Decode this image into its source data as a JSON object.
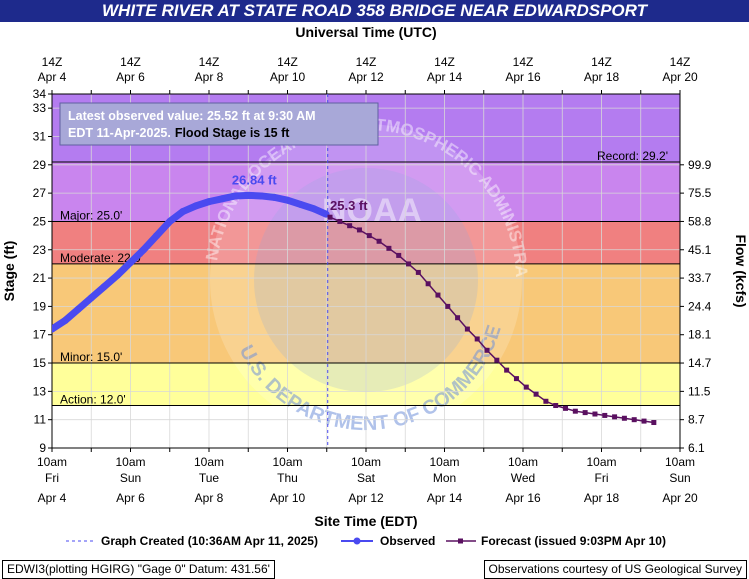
{
  "chart_data": {
    "type": "line",
    "title": "WHITE RIVER AT STATE ROAD 358 BRIDGE NEAR EDWARDSPORT",
    "top_axis_title": "Universal Time (UTC)",
    "bottom_axis_title": "Site Time (EDT)",
    "ylabel": "Stage (ft)",
    "y2label": "Flow (kcfs)",
    "xlim": [
      "2025-04-04T10:00",
      "2025-04-20T10:00"
    ],
    "ylim": [
      9,
      34
    ],
    "grid": true,
    "y_ticks": [
      9,
      11,
      13,
      15,
      17,
      19,
      21,
      23,
      25,
      27,
      29,
      31,
      33,
      34
    ],
    "x_ticks": [
      {
        "time": "2025-04-04T10:00",
        "top": [
          "14Z",
          "Apr  4"
        ],
        "bottom": [
          "10am",
          "Fri",
          "Apr 4"
        ]
      },
      {
        "time": "2025-04-05T10:00",
        "top": [],
        "bottom": []
      },
      {
        "time": "2025-04-06T10:00",
        "top": [
          "14Z",
          "Apr  6"
        ],
        "bottom": [
          "10am",
          "Sun",
          "Apr 6"
        ]
      },
      {
        "time": "2025-04-07T10:00",
        "top": [],
        "bottom": []
      },
      {
        "time": "2025-04-08T10:00",
        "top": [
          "14Z",
          "Apr  8"
        ],
        "bottom": [
          "10am",
          "Tue",
          "Apr 8"
        ]
      },
      {
        "time": "2025-04-09T10:00",
        "top": [],
        "bottom": []
      },
      {
        "time": "2025-04-10T10:00",
        "top": [
          "14Z",
          "Apr 10"
        ],
        "bottom": [
          "10am",
          "Thu",
          "Apr 10"
        ]
      },
      {
        "time": "2025-04-11T10:00",
        "top": [],
        "bottom": []
      },
      {
        "time": "2025-04-12T10:00",
        "top": [
          "14Z",
          "Apr 12"
        ],
        "bottom": [
          "10am",
          "Sat",
          "Apr 12"
        ]
      },
      {
        "time": "2025-04-13T10:00",
        "top": [],
        "bottom": []
      },
      {
        "time": "2025-04-14T10:00",
        "top": [
          "14Z",
          "Apr 14"
        ],
        "bottom": [
          "10am",
          "Mon",
          "Apr 14"
        ]
      },
      {
        "time": "2025-04-15T10:00",
        "top": [],
        "bottom": []
      },
      {
        "time": "2025-04-16T10:00",
        "top": [
          "14Z",
          "Apr 16"
        ],
        "bottom": [
          "10am",
          "Wed",
          "Apr 16"
        ]
      },
      {
        "time": "2025-04-17T10:00",
        "top": [],
        "bottom": []
      },
      {
        "time": "2025-04-18T10:00",
        "top": [
          "14Z",
          "Apr 18"
        ],
        "bottom": [
          "10am",
          "Fri",
          "Apr 18"
        ]
      },
      {
        "time": "2025-04-19T10:00",
        "top": [],
        "bottom": []
      },
      {
        "time": "2025-04-20T10:00",
        "top": [
          "14Z",
          "Apr 20"
        ],
        "bottom": [
          "10am",
          "Sun",
          "Apr 20"
        ]
      }
    ],
    "flow_ticks": [
      {
        "stage": 29,
        "label": "99.9"
      },
      {
        "stage": 27,
        "label": "75.5"
      },
      {
        "stage": 25,
        "label": "58.8"
      },
      {
        "stage": 23,
        "label": "45.1"
      },
      {
        "stage": 21,
        "label": "33.7"
      },
      {
        "stage": 19,
        "label": "24.4"
      },
      {
        "stage": 17,
        "label": "18.1"
      },
      {
        "stage": 15,
        "label": "14.7"
      },
      {
        "stage": 13,
        "label": "11.5"
      },
      {
        "stage": 11,
        "label": "8.7"
      },
      {
        "stage": 9,
        "label": "6.1"
      }
    ],
    "bands": [
      {
        "from": 29.2,
        "to": 34,
        "color": "#b47cf0"
      },
      {
        "from": 25,
        "to": 29.2,
        "color": "#c985ee"
      },
      {
        "from": 22,
        "to": 25,
        "color": "#f08080"
      },
      {
        "from": 15,
        "to": 22,
        "color": "#f8c878"
      },
      {
        "from": 12,
        "to": 15,
        "color": "#ffff9a"
      },
      {
        "from": 9,
        "to": 12,
        "color": "#ffffff"
      }
    ],
    "thresholds": [
      {
        "label": "Record: 29.2'",
        "stage": 29.2,
        "side": "right"
      },
      {
        "label": "Major: 25.0'",
        "stage": 25.0,
        "side": "left"
      },
      {
        "label": "Moderate: 22.0'",
        "stage": 22.0,
        "side": "left"
      },
      {
        "label": "Minor: 15.0'",
        "stage": 15.0,
        "side": "left"
      },
      {
        "label": "Action: 12.0'",
        "stage": 12.0,
        "side": "left"
      }
    ],
    "annotations": [
      {
        "text": "26.84 ft",
        "time": "2025-04-09T00:00",
        "stage": 27.6,
        "color": "#4a4af0"
      },
      {
        "text": "25.3 ft",
        "time": "2025-04-11T12:00",
        "stage": 25.8,
        "color": "#5a1060"
      }
    ],
    "now_time": "2025-04-11T10:36",
    "series": [
      {
        "name": "Observed",
        "color": "#4a4af0",
        "points": [
          [
            "2025-04-04T10:00",
            17.4
          ],
          [
            "2025-04-04T18:00",
            18.0
          ],
          [
            "2025-04-05T02:00",
            18.8
          ],
          [
            "2025-04-05T10:00",
            19.6
          ],
          [
            "2025-04-05T18:00",
            20.4
          ],
          [
            "2025-04-06T02:00",
            21.2
          ],
          [
            "2025-04-06T10:00",
            22.1
          ],
          [
            "2025-04-06T18:00",
            23.0
          ],
          [
            "2025-04-07T02:00",
            24.0
          ],
          [
            "2025-04-07T10:00",
            25.0
          ],
          [
            "2025-04-07T18:00",
            25.7
          ],
          [
            "2025-04-08T02:00",
            26.1
          ],
          [
            "2025-04-08T10:00",
            26.4
          ],
          [
            "2025-04-08T18:00",
            26.6
          ],
          [
            "2025-04-09T02:00",
            26.8
          ],
          [
            "2025-04-09T10:00",
            26.84
          ],
          [
            "2025-04-09T18:00",
            26.8
          ],
          [
            "2025-04-10T02:00",
            26.7
          ],
          [
            "2025-04-10T10:00",
            26.5
          ],
          [
            "2025-04-10T18:00",
            26.2
          ],
          [
            "2025-04-11T02:00",
            25.9
          ],
          [
            "2025-04-11T09:30",
            25.52
          ]
        ]
      },
      {
        "name": "Forecast",
        "color": "#5a1060",
        "points": [
          [
            "2025-04-11T12:00",
            25.3
          ],
          [
            "2025-04-11T18:00",
            25.0
          ],
          [
            "2025-04-12T00:00",
            24.7
          ],
          [
            "2025-04-12T06:00",
            24.4
          ],
          [
            "2025-04-12T12:00",
            24.0
          ],
          [
            "2025-04-12T18:00",
            23.6
          ],
          [
            "2025-04-13T00:00",
            23.1
          ],
          [
            "2025-04-13T06:00",
            22.6
          ],
          [
            "2025-04-13T12:00",
            22.0
          ],
          [
            "2025-04-13T18:00",
            21.4
          ],
          [
            "2025-04-14T00:00",
            20.6
          ],
          [
            "2025-04-14T06:00",
            19.8
          ],
          [
            "2025-04-14T12:00",
            19.0
          ],
          [
            "2025-04-14T18:00",
            18.2
          ],
          [
            "2025-04-15T00:00",
            17.4
          ],
          [
            "2025-04-15T06:00",
            16.7
          ],
          [
            "2025-04-15T12:00",
            15.9
          ],
          [
            "2025-04-15T18:00",
            15.2
          ],
          [
            "2025-04-16T00:00",
            14.5
          ],
          [
            "2025-04-16T06:00",
            13.9
          ],
          [
            "2025-04-16T12:00",
            13.3
          ],
          [
            "2025-04-16T18:00",
            12.8
          ],
          [
            "2025-04-17T00:00",
            12.3
          ],
          [
            "2025-04-17T06:00",
            12.0
          ],
          [
            "2025-04-17T12:00",
            11.8
          ],
          [
            "2025-04-17T18:00",
            11.6
          ],
          [
            "2025-04-18T00:00",
            11.5
          ],
          [
            "2025-04-18T06:00",
            11.4
          ],
          [
            "2025-04-18T12:00",
            11.3
          ],
          [
            "2025-04-18T18:00",
            11.2
          ],
          [
            "2025-04-19T00:00",
            11.1
          ],
          [
            "2025-04-19T06:00",
            11.0
          ],
          [
            "2025-04-19T12:00",
            10.9
          ],
          [
            "2025-04-19T18:00",
            10.8
          ]
        ]
      }
    ],
    "info_box": {
      "line1": "Latest observed value: 25.52 ft at 9:30 AM",
      "line2": "EDT 11-Apr-2025.",
      "line2b": "Flood Stage is 15 ft"
    },
    "legend": {
      "created": "Graph Created (10:36AM Apr 11, 2025)",
      "observed": "Observed",
      "forecast": "Forecast (issued 9:03PM Apr 10)"
    },
    "watermark": {
      "agency_text": "NATIONAL OCEANIC AND ATMOSPHERIC ADMINISTRATION",
      "logo_text": "NOAA",
      "dept_text": "U.S. DEPARTMENT OF COMMERCE"
    }
  },
  "footer": {
    "left": "EDWI3(plotting HGIRG) \"Gage 0\" Datum: 431.56'",
    "right": "Observations courtesy of US Geological Survey"
  }
}
